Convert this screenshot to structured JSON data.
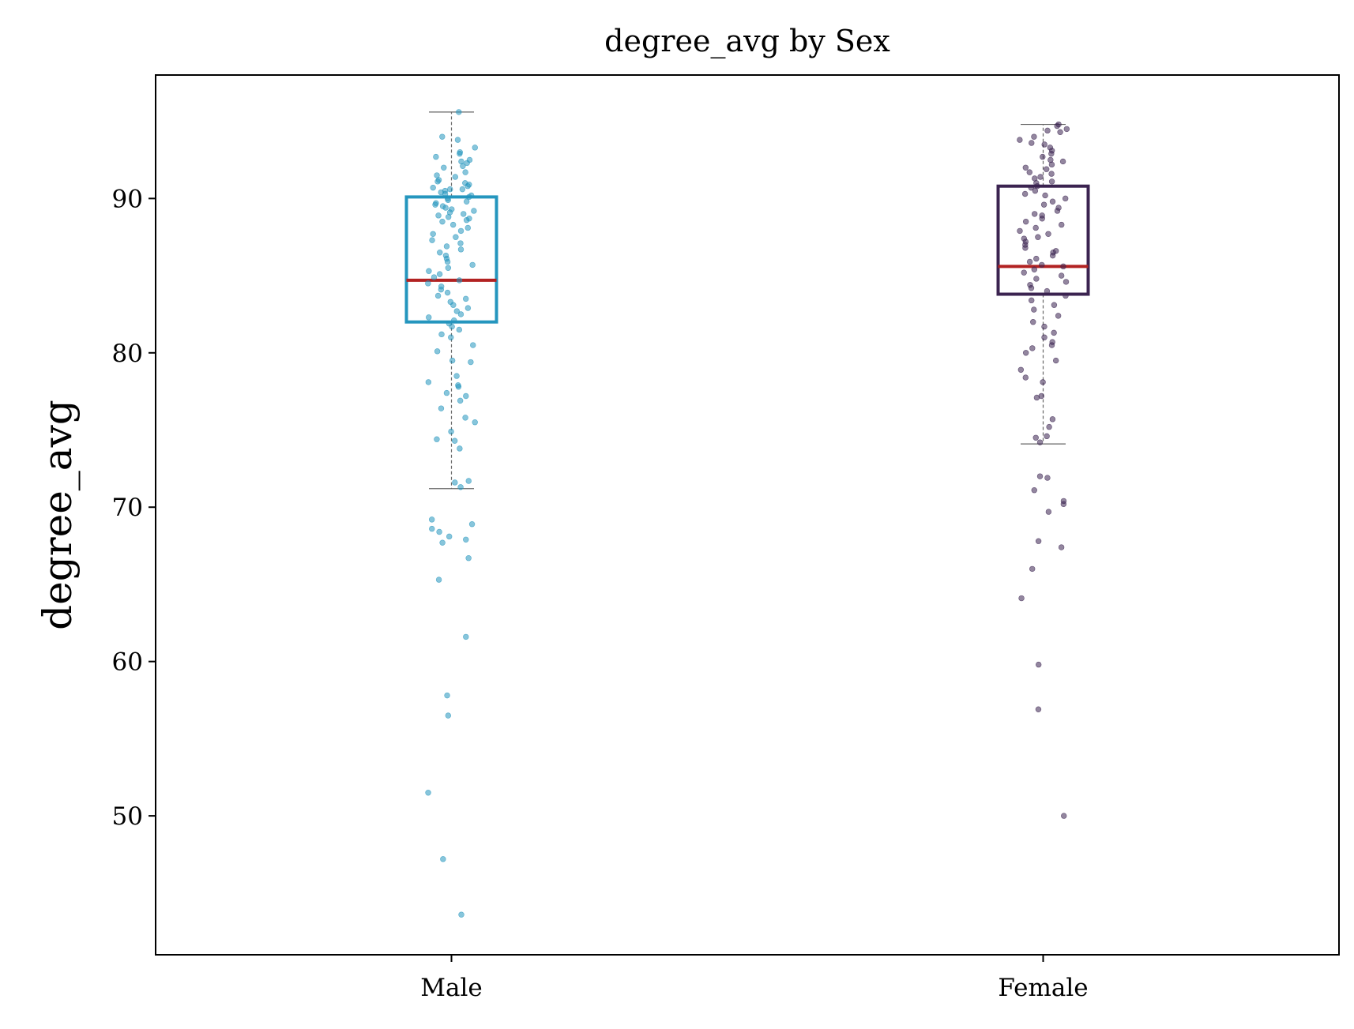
{
  "chart_data": {
    "type": "box",
    "title": "degree_avg by Sex",
    "xlabel": "",
    "ylabel": "degree_avg",
    "ylim": [
      41,
      98
    ],
    "yticks": [
      50,
      60,
      70,
      80,
      90
    ],
    "categories": [
      "Male",
      "Female"
    ],
    "grid": false,
    "median_color": "#b22222",
    "whisker_color": "#666666",
    "series": [
      {
        "category": "Male",
        "color": "#2596be",
        "stats": {
          "whislo": 71.2,
          "q1": 82.0,
          "median": 84.7,
          "q3": 90.1,
          "whishi": 95.6
        },
        "outliers": [
          69.2,
          68.9,
          68.6,
          68.4,
          68.1,
          67.9,
          67.7,
          66.7,
          65.3,
          61.6,
          57.8,
          56.5,
          51.5,
          47.2,
          43.6
        ],
        "points": [
          95.6,
          94.0,
          93.8,
          93.3,
          93.0,
          92.9,
          92.7,
          92.5,
          92.4,
          92.3,
          92.1,
          92.0,
          91.7,
          91.5,
          91.4,
          91.2,
          91.1,
          91.0,
          90.9,
          90.8,
          90.7,
          90.6,
          90.6,
          90.5,
          90.4,
          90.3,
          90.2,
          90.1,
          90.0,
          89.9,
          89.8,
          89.7,
          89.6,
          89.5,
          89.4,
          89.3,
          89.2,
          89.1,
          89.0,
          88.9,
          88.8,
          88.7,
          88.6,
          88.5,
          88.3,
          88.1,
          87.9,
          87.7,
          87.5,
          87.3,
          87.1,
          86.9,
          86.7,
          86.5,
          86.3,
          86.1,
          85.9,
          85.7,
          85.5,
          85.3,
          85.1,
          84.9,
          84.7,
          84.5,
          84.3,
          84.1,
          83.9,
          83.7,
          83.5,
          83.3,
          83.1,
          82.9,
          82.7,
          82.5,
          82.3,
          82.1,
          81.9,
          81.7,
          81.5,
          81.2,
          81.0,
          80.5,
          80.1,
          79.5,
          79.4,
          78.5,
          78.1,
          77.9,
          77.8,
          77.4,
          77.2,
          76.9,
          76.4,
          75.8,
          75.5,
          74.9,
          74.4,
          74.3,
          73.8,
          71.7,
          71.6,
          71.3
        ]
      },
      {
        "category": "Female",
        "color": "#3b2350",
        "stats": {
          "whislo": 74.1,
          "q1": 83.8,
          "median": 85.6,
          "q3": 90.8,
          "whishi": 94.8
        },
        "outliers": [
          72.0,
          71.9,
          71.1,
          70.4,
          70.2,
          69.7,
          67.8,
          67.4,
          66.0,
          64.1,
          59.8,
          56.9,
          50.0
        ],
        "points": [
          94.8,
          94.7,
          94.5,
          94.4,
          94.3,
          94.0,
          93.8,
          93.6,
          93.5,
          93.3,
          93.1,
          92.9,
          92.7,
          92.5,
          92.4,
          92.2,
          92.0,
          91.9,
          91.7,
          91.6,
          91.4,
          91.3,
          91.1,
          91.0,
          90.8,
          90.7,
          90.5,
          90.3,
          90.2,
          90.0,
          89.8,
          89.6,
          89.4,
          89.2,
          89.0,
          88.9,
          88.7,
          88.5,
          88.3,
          88.1,
          87.9,
          87.7,
          87.5,
          87.4,
          87.2,
          87.0,
          86.8,
          86.6,
          86.5,
          86.3,
          86.1,
          85.9,
          85.7,
          85.6,
          85.4,
          85.2,
          85.0,
          84.8,
          84.6,
          84.4,
          84.2,
          84.0,
          83.7,
          83.4,
          83.1,
          82.8,
          82.4,
          82.0,
          81.7,
          81.3,
          81.0,
          80.7,
          80.5,
          80.3,
          80.0,
          79.5,
          78.9,
          78.4,
          78.1,
          77.2,
          77.1,
          75.7,
          75.2,
          74.6,
          74.5,
          74.2
        ]
      }
    ]
  }
}
